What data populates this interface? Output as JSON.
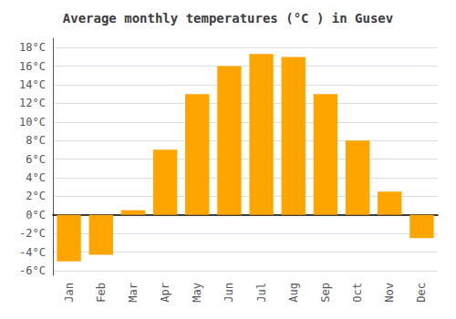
{
  "chart_data": {
    "type": "bar",
    "title": "Average monthly temperatures (°C ) in Gusev",
    "categories": [
      "Jan",
      "Feb",
      "Mar",
      "Apr",
      "May",
      "Jun",
      "Jul",
      "Aug",
      "Sep",
      "Oct",
      "Nov",
      "Dec"
    ],
    "values": [
      -5.0,
      -4.3,
      0.5,
      7.0,
      13.0,
      16.0,
      17.3,
      17.0,
      13.0,
      8.0,
      2.5,
      -2.5
    ],
    "color": "#FFA500",
    "ylim": [
      -6.5,
      19
    ],
    "yticks": [
      {
        "value": -6,
        "label": "-6°C"
      },
      {
        "value": -4,
        "label": "-4°C"
      },
      {
        "value": -2,
        "label": "-2°C"
      },
      {
        "value": 0,
        "label": "0°C"
      },
      {
        "value": 2,
        "label": "2°C"
      },
      {
        "value": 4,
        "label": "4°C"
      },
      {
        "value": 6,
        "label": "6°C"
      },
      {
        "value": 8,
        "label": "8°C"
      },
      {
        "value": 10,
        "label": "10°C"
      },
      {
        "value": 12,
        "label": "12°C"
      },
      {
        "value": 14,
        "label": "14°C"
      },
      {
        "value": 16,
        "label": "16°C"
      },
      {
        "value": 18,
        "label": "18°C"
      }
    ],
    "grid": true
  }
}
